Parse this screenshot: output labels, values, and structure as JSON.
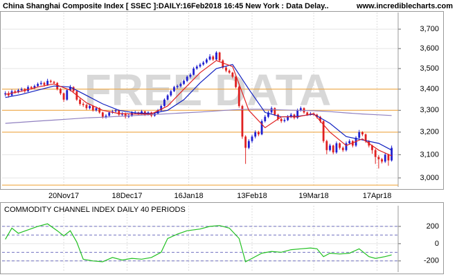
{
  "chart_data": [
    {
      "type": "candlestick",
      "title": "China Shanghai Composite Index [ SSEC ]:DAILY:16Feb2018 16:45 New York : Data Delay..",
      "source": "www.incrediblecharts.com",
      "watermark": "FREE DATA",
      "log_scale": true,
      "grid": true,
      "up_color": "#2020d0",
      "down_color": "#e02020",
      "xlim": [
        -1,
        121
      ],
      "xticks": [
        {
          "value": 18,
          "label": "20Nov17"
        },
        {
          "value": 37.5,
          "label": "18Dec17"
        },
        {
          "value": 56.5,
          "label": "16Jan18"
        },
        {
          "value": 76,
          "label": "13Feb18"
        },
        {
          "value": 95,
          "label": "19Mar18"
        },
        {
          "value": 114.5,
          "label": "17Apr18"
        }
      ],
      "ylim": [
        2962,
        3788
      ],
      "yticks": [
        {
          "value": 3000,
          "label": "3,000"
        },
        {
          "value": 3100,
          "label": "3,100"
        },
        {
          "value": 3200,
          "label": "3,200"
        },
        {
          "value": 3300,
          "label": "3,300"
        },
        {
          "value": 3400,
          "label": "3,400"
        },
        {
          "value": 3500,
          "label": "3,500"
        },
        {
          "value": 3600,
          "label": "3,600"
        },
        {
          "value": 3700,
          "label": "3,700"
        }
      ],
      "hlines": [
        3400,
        3300,
        3200,
        2970
      ],
      "hline_color": "#f0a030",
      "ohlc": [
        [
          3375,
          3390,
          3365,
          3380
        ],
        [
          3380,
          3390,
          3360,
          3370
        ],
        [
          3370,
          3398,
          3365,
          3390
        ],
        [
          3390,
          3396,
          3378,
          3385
        ],
        [
          3385,
          3402,
          3380,
          3395
        ],
        [
          3395,
          3408,
          3388,
          3400
        ],
        [
          3400,
          3405,
          3382,
          3390
        ],
        [
          3390,
          3418,
          3386,
          3410
        ],
        [
          3410,
          3415,
          3398,
          3405
        ],
        [
          3405,
          3422,
          3400,
          3415
        ],
        [
          3415,
          3432,
          3410,
          3425
        ],
        [
          3425,
          3440,
          3418,
          3430
        ],
        [
          3430,
          3436,
          3412,
          3420
        ],
        [
          3420,
          3450,
          3416,
          3440
        ],
        [
          3440,
          3446,
          3428,
          3435
        ],
        [
          3435,
          3440,
          3422,
          3430
        ],
        [
          3430,
          3434,
          3394,
          3400
        ],
        [
          3400,
          3406,
          3372,
          3380
        ],
        [
          3380,
          3384,
          3340,
          3350
        ],
        [
          3350,
          3400,
          3345,
          3395
        ],
        [
          3395,
          3420,
          3390,
          3410
        ],
        [
          3410,
          3414,
          3382,
          3390
        ],
        [
          3390,
          3394,
          3344,
          3350
        ],
        [
          3350,
          3356,
          3322,
          3330
        ],
        [
          3330,
          3338,
          3316,
          3325
        ],
        [
          3325,
          3330,
          3302,
          3310
        ],
        [
          3310,
          3328,
          3304,
          3320
        ],
        [
          3320,
          3324,
          3294,
          3300
        ],
        [
          3300,
          3318,
          3294,
          3310
        ],
        [
          3310,
          3314,
          3284,
          3290
        ],
        [
          3290,
          3294,
          3262,
          3270
        ],
        [
          3270,
          3282,
          3262,
          3275
        ],
        [
          3275,
          3296,
          3270,
          3290
        ],
        [
          3290,
          3302,
          3284,
          3295
        ],
        [
          3295,
          3308,
          3290,
          3300
        ],
        [
          3300,
          3304,
          3274,
          3280
        ],
        [
          3280,
          3292,
          3274,
          3285
        ],
        [
          3285,
          3290,
          3262,
          3270
        ],
        [
          3270,
          3282,
          3264,
          3275
        ],
        [
          3275,
          3296,
          3270,
          3290
        ],
        [
          3286,
          3298,
          3282,
          3290
        ],
        [
          3290,
          3294,
          3278,
          3285
        ],
        [
          3285,
          3302,
          3280,
          3295
        ],
        [
          3295,
          3298,
          3274,
          3280
        ],
        [
          3280,
          3296,
          3276,
          3290
        ],
        [
          3290,
          3294,
          3268,
          3275
        ],
        [
          3275,
          3292,
          3270,
          3285
        ],
        [
          3285,
          3306,
          3280,
          3300
        ],
        [
          3300,
          3326,
          3296,
          3320
        ],
        [
          3320,
          3356,
          3316,
          3350
        ],
        [
          3350,
          3376,
          3346,
          3370
        ],
        [
          3370,
          3396,
          3364,
          3390
        ],
        [
          3390,
          3416,
          3386,
          3410
        ],
        [
          3410,
          3422,
          3402,
          3415
        ],
        [
          3415,
          3432,
          3408,
          3425
        ],
        [
          3425,
          3446,
          3420,
          3440
        ],
        [
          3440,
          3466,
          3434,
          3460
        ],
        [
          3460,
          3478,
          3452,
          3470
        ],
        [
          3470,
          3508,
          3466,
          3500
        ],
        [
          3500,
          3518,
          3494,
          3510
        ],
        [
          3510,
          3528,
          3504,
          3520
        ],
        [
          3520,
          3538,
          3514,
          3530
        ],
        [
          3530,
          3552,
          3524,
          3545
        ],
        [
          3545,
          3572,
          3540,
          3560
        ],
        [
          3560,
          3566,
          3538,
          3545
        ],
        [
          3545,
          3587,
          3540,
          3580
        ],
        [
          3580,
          3584,
          3534,
          3540
        ],
        [
          3540,
          3546,
          3498,
          3505
        ],
        [
          3505,
          3512,
          3482,
          3490
        ],
        [
          3490,
          3496,
          3474,
          3480
        ],
        [
          3480,
          3484,
          3452,
          3460
        ],
        [
          3460,
          3464,
          3404,
          3410
        ],
        [
          3410,
          3416,
          3312,
          3320
        ],
        [
          3320,
          3326,
          3170,
          3180
        ],
        [
          3180,
          3186,
          3060,
          3130
        ],
        [
          3130,
          3168,
          3124,
          3160
        ],
        [
          3160,
          3188,
          3152,
          3180
        ],
        [
          3180,
          3208,
          3172,
          3200
        ],
        [
          3200,
          3206,
          3182,
          3190
        ],
        [
          3190,
          3258,
          3186,
          3250
        ],
        [
          3250,
          3278,
          3244,
          3270
        ],
        [
          3270,
          3298,
          3264,
          3290
        ],
        [
          3290,
          3318,
          3284,
          3310
        ],
        [
          3310,
          3314,
          3274,
          3280
        ],
        [
          3280,
          3284,
          3252,
          3260
        ],
        [
          3260,
          3266,
          3242,
          3250
        ],
        [
          3250,
          3264,
          3244,
          3255
        ],
        [
          3255,
          3278,
          3250,
          3270
        ],
        [
          3270,
          3288,
          3264,
          3280
        ],
        [
          3280,
          3284,
          3258,
          3265
        ],
        [
          3265,
          3308,
          3260,
          3300
        ],
        [
          3300,
          3318,
          3294,
          3310
        ],
        [
          3310,
          3314,
          3284,
          3290
        ],
        [
          3290,
          3294,
          3274,
          3280
        ],
        [
          3280,
          3292,
          3276,
          3285
        ],
        [
          3285,
          3290,
          3274,
          3280
        ],
        [
          3280,
          3284,
          3262,
          3270
        ],
        [
          3270,
          3274,
          3242,
          3250
        ],
        [
          3250,
          3254,
          3152,
          3160
        ],
        [
          3160,
          3166,
          3102,
          3120
        ],
        [
          3120,
          3148,
          3114,
          3140
        ],
        [
          3140,
          3144,
          3102,
          3110
        ],
        [
          3110,
          3158,
          3104,
          3150
        ],
        [
          3150,
          3154,
          3122,
          3130
        ],
        [
          3130,
          3136,
          3112,
          3120
        ],
        [
          3120,
          3158,
          3114,
          3150
        ],
        [
          3150,
          3168,
          3144,
          3160
        ],
        [
          3160,
          3164,
          3132,
          3140
        ],
        [
          3140,
          3182,
          3134,
          3175
        ],
        [
          3175,
          3210,
          3170,
          3200
        ],
        [
          3200,
          3204,
          3182,
          3190
        ],
        [
          3190,
          3194,
          3152,
          3160
        ],
        [
          3160,
          3164,
          3132,
          3140
        ],
        [
          3140,
          3144,
          3104,
          3120
        ],
        [
          3120,
          3126,
          3060,
          3090
        ],
        [
          3090,
          3098,
          3040,
          3080
        ],
        [
          3080,
          3086,
          3062,
          3070
        ],
        [
          3070,
          3108,
          3064,
          3100
        ],
        [
          3100,
          3104,
          3052,
          3075
        ],
        [
          3075,
          3140,
          3070,
          3130
        ]
      ],
      "lines": [
        {
          "color": "#9080c0",
          "x": [
            0,
            5,
            10,
            15,
            20,
            25,
            30,
            35,
            40,
            45,
            50,
            55,
            60,
            65,
            70,
            75,
            80,
            85,
            90,
            95,
            100,
            105,
            110,
            115,
            119
          ],
          "values": [
            3240,
            3245,
            3250,
            3255,
            3260,
            3265,
            3268,
            3272,
            3276,
            3280,
            3284,
            3288,
            3292,
            3297,
            3302,
            3305,
            3305,
            3302,
            3300,
            3298,
            3294,
            3288,
            3283,
            3279,
            3276
          ]
        },
        {
          "color": "#1020c0",
          "x": [
            0,
            5,
            10,
            15,
            20,
            25,
            30,
            35,
            40,
            45,
            50,
            55,
            60,
            65,
            70,
            75,
            80,
            85,
            90,
            95,
            100,
            105,
            110,
            115,
            119
          ],
          "values": [
            3360,
            3375,
            3395,
            3415,
            3410,
            3370,
            3330,
            3300,
            3288,
            3285,
            3300,
            3350,
            3430,
            3500,
            3520,
            3400,
            3290,
            3270,
            3272,
            3282,
            3240,
            3180,
            3165,
            3150,
            3120
          ]
        },
        {
          "color": "#e02020",
          "x": [
            0,
            5,
            10,
            15,
            20,
            25,
            30,
            35,
            40,
            45,
            50,
            55,
            60,
            65,
            70,
            75,
            80,
            85,
            90,
            95,
            100,
            105,
            110,
            115,
            119
          ],
          "values": [
            3375,
            3390,
            3410,
            3425,
            3395,
            3335,
            3300,
            3285,
            3283,
            3283,
            3320,
            3400,
            3480,
            3540,
            3510,
            3300,
            3220,
            3270,
            3270,
            3285,
            3200,
            3140,
            3170,
            3120,
            3095
          ]
        }
      ]
    },
    {
      "type": "line",
      "title": "COMMODITY CHANNEL INDEX DAILY 40 PERIODS",
      "xlim": [
        -1,
        121
      ],
      "xticks": [
        18,
        37.5,
        56.5,
        76,
        95,
        114.5
      ],
      "ylim": [
        -330,
        440
      ],
      "yticks": [
        -200,
        0,
        200
      ],
      "levels": [
        200,
        100,
        -100,
        -200
      ],
      "series": [
        {
          "color": "#20c020",
          "x": [
            0,
            2,
            4,
            7,
            10,
            13,
            16,
            18,
            20,
            22,
            24,
            27,
            30,
            33,
            36,
            39,
            42,
            45,
            48,
            50,
            53,
            56,
            60,
            63,
            66,
            69,
            72,
            74,
            76,
            79,
            82,
            85,
            88,
            91,
            94,
            96,
            98,
            100,
            103,
            106,
            109,
            112,
            114,
            117,
            119
          ],
          "values": [
            50,
            180,
            120,
            160,
            200,
            230,
            150,
            90,
            150,
            20,
            -180,
            -200,
            -210,
            -160,
            -190,
            -170,
            -180,
            -160,
            -100,
            60,
            110,
            150,
            170,
            200,
            210,
            180,
            60,
            -210,
            -170,
            -110,
            -90,
            -100,
            -70,
            -60,
            -50,
            -60,
            -150,
            -110,
            -120,
            -110,
            -60,
            -150,
            -170,
            -150,
            -130
          ]
        }
      ]
    }
  ]
}
